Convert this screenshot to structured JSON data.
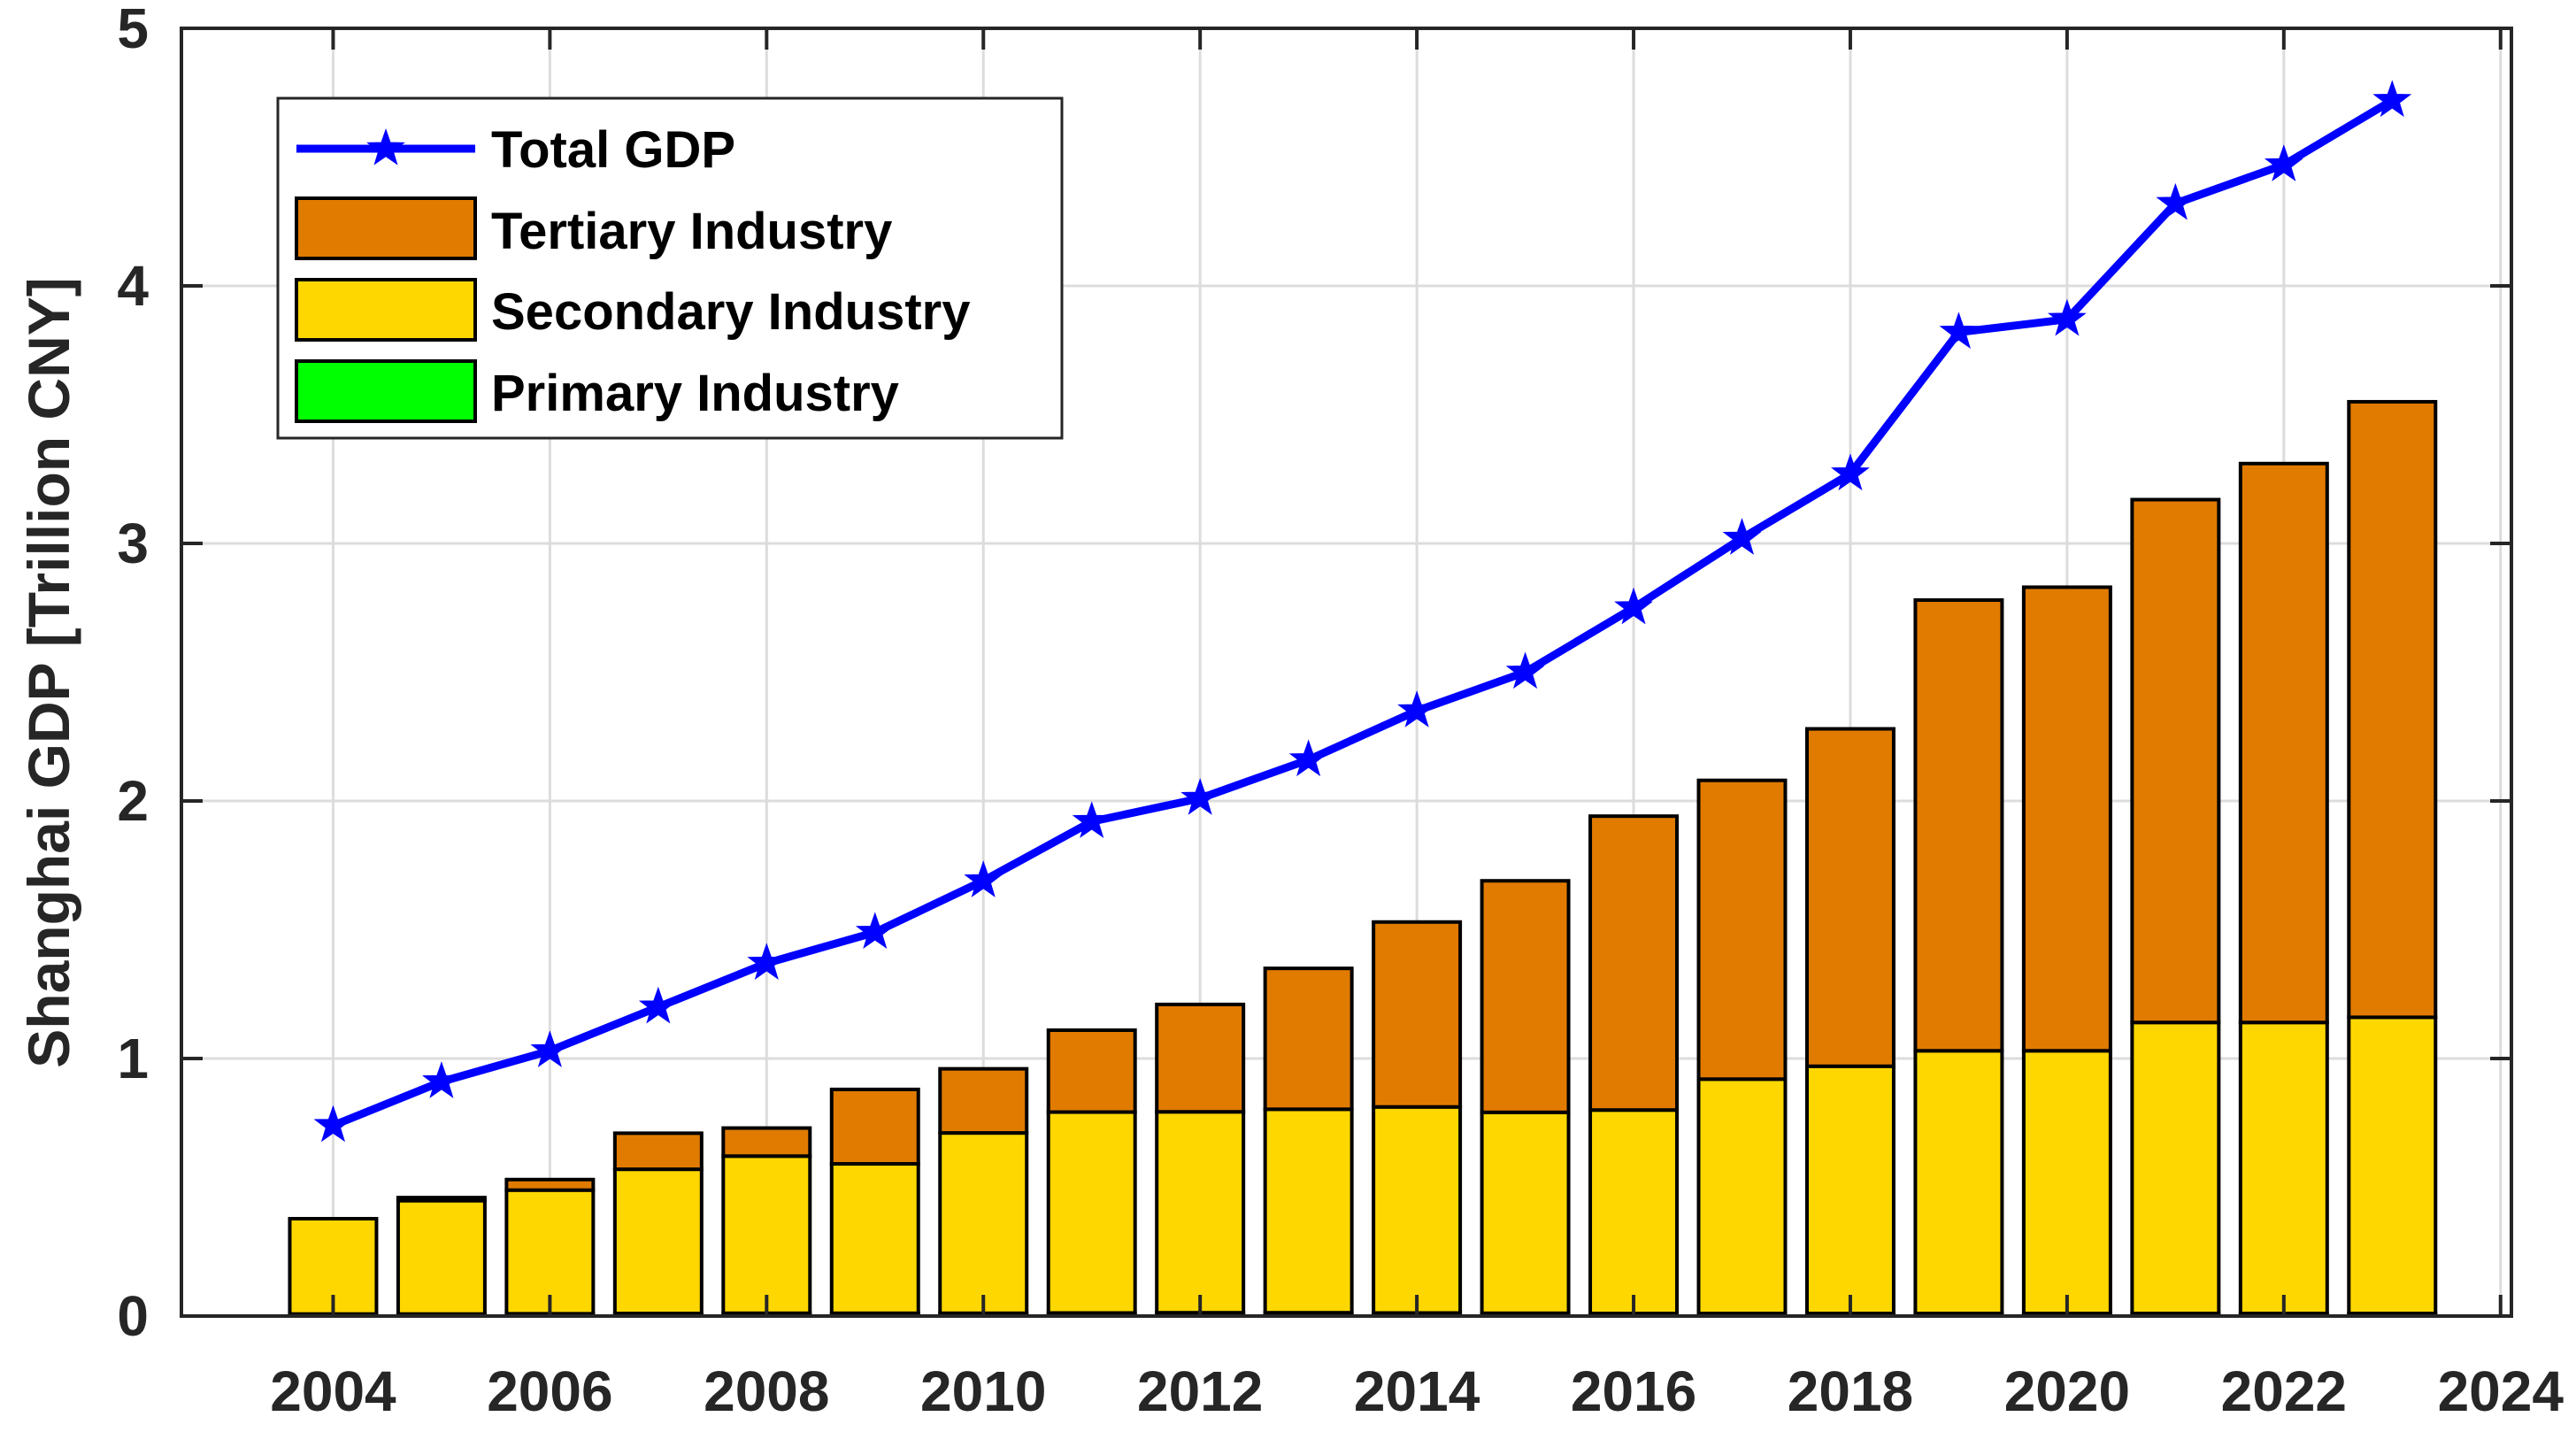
{
  "chart_data": {
    "type": "bar",
    "stacked": true,
    "title": "",
    "xlabel": "",
    "ylabel": "Shanghai GDP [Trillion CNY]",
    "xlim": [
      2002.6,
      2024.1
    ],
    "ylim": [
      0,
      5
    ],
    "xticks": [
      "2004",
      "2006",
      "2008",
      "2010",
      "2012",
      "2014",
      "2016",
      "2018",
      "2020",
      "2022",
      "2024"
    ],
    "yticks": [
      "0",
      "1",
      "2",
      "3",
      "4",
      "5"
    ],
    "grid": true,
    "legend_position": "top-left",
    "x": [
      2004,
      2005,
      2006,
      2007,
      2008,
      2009,
      2010,
      2011,
      2012,
      2013,
      2014,
      2015,
      2016,
      2017,
      2018,
      2019,
      2020,
      2021,
      2022,
      2023
    ],
    "series": [
      {
        "name": "Primary Industry",
        "kind": "bar",
        "color": "#00ff00",
        "values": [
          0.008,
          0.008,
          0.009,
          0.01,
          0.011,
          0.011,
          0.011,
          0.012,
          0.013,
          0.013,
          0.012,
          0.011,
          0.01,
          0.01,
          0.01,
          0.01,
          0.01,
          0.01,
          0.01,
          0.01
        ]
      },
      {
        "name": "Secondary Industry",
        "kind": "bar",
        "color": "#ffd700",
        "values": [
          0.37,
          0.44,
          0.48,
          0.56,
          0.61,
          0.58,
          0.7,
          0.78,
          0.78,
          0.79,
          0.8,
          0.78,
          0.79,
          0.91,
          0.96,
          1.02,
          1.02,
          1.13,
          1.13,
          1.15
        ]
      },
      {
        "name": "Tertiary Industry",
        "kind": "bar",
        "color": "#e07b00",
        "values": [
          0.0,
          0.012,
          0.041,
          0.14,
          0.109,
          0.289,
          0.249,
          0.318,
          0.417,
          0.547,
          0.718,
          0.899,
          1.141,
          1.16,
          1.31,
          1.75,
          1.8,
          2.03,
          2.17,
          2.39
        ]
      },
      {
        "name": "Total GDP",
        "kind": "line",
        "color": "#0000ff",
        "marker": "star",
        "values": [
          0.74,
          0.91,
          1.03,
          1.2,
          1.37,
          1.49,
          1.69,
          1.92,
          2.01,
          2.16,
          2.35,
          2.5,
          2.75,
          3.02,
          3.27,
          3.82,
          3.87,
          4.32,
          4.47,
          4.72
        ]
      }
    ]
  },
  "legend": {
    "items": [
      {
        "label": "Total GDP",
        "type": "line",
        "color": "#0000ff"
      },
      {
        "label": "Tertiary Industry",
        "type": "patch",
        "color": "#e07b00"
      },
      {
        "label": "Secondary Industry",
        "type": "patch",
        "color": "#ffd700"
      },
      {
        "label": "Primary Industry",
        "type": "patch",
        "color": "#00ff00"
      }
    ]
  }
}
